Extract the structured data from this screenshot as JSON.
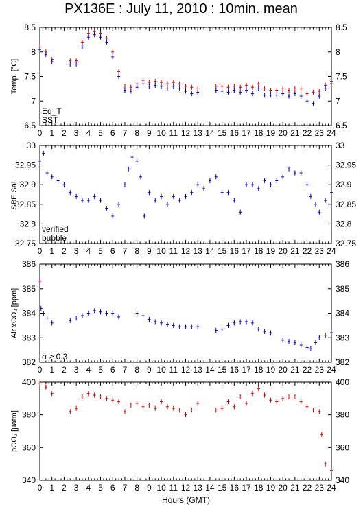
{
  "chart_data": {
    "title": "PX136E : July 11, 2010 : 10min. mean",
    "xlabel": "Hours (GMT)",
    "xlim": [
      0,
      24
    ],
    "xticks": [
      0,
      1,
      2,
      3,
      4,
      5,
      6,
      7,
      8,
      9,
      10,
      11,
      12,
      13,
      14,
      15,
      16,
      17,
      18,
      19,
      20,
      21,
      22,
      23,
      24
    ],
    "panels": [
      {
        "type": "scatter",
        "ylabel": "Temp. [°C]",
        "ylim": [
          6.5,
          8.5
        ],
        "yticks": [
          "6.5",
          "7",
          "7.5",
          "8",
          "8.5"
        ],
        "legend": [
          {
            "label": "Eq_T",
            "color": "#cc0000"
          },
          {
            "label": "SST",
            "color": "#0000cc"
          }
        ],
        "series": [
          {
            "name": "Eq_T",
            "color": "#cc0000",
            "x": [
              0,
              0.5,
              1,
              2.5,
              3,
              3.5,
              4,
              4.5,
              5,
              5.5,
              6,
              6.5,
              7,
              7.5,
              8,
              8.5,
              9,
              9.5,
              10,
              10.5,
              11,
              11.5,
              12,
              12.5,
              13,
              14.5,
              15,
              15.5,
              16,
              16.5,
              17,
              17.5,
              18,
              18.5,
              19,
              19.5,
              20,
              20.5,
              21,
              21.5,
              22,
              22.5,
              23,
              23.5,
              24
            ],
            "values": [
              8.1,
              8.0,
              7.85,
              7.82,
              7.82,
              8.2,
              8.38,
              8.42,
              8.38,
              8.28,
              8.0,
              7.6,
              7.3,
              7.28,
              7.35,
              7.42,
              7.38,
              7.4,
              7.38,
              7.35,
              7.38,
              7.35,
              7.3,
              7.28,
              7.25,
              7.3,
              7.3,
              7.28,
              7.3,
              7.28,
              7.32,
              7.28,
              7.35,
              7.25,
              7.22,
              7.22,
              7.25,
              7.22,
              7.25,
              7.25,
              7.15,
              7.18,
              7.2,
              7.32,
              7.4
            ]
          },
          {
            "name": "SST",
            "color": "#0000cc",
            "x": [
              0,
              0.5,
              1,
              2.5,
              3,
              3.5,
              4,
              4.5,
              5,
              5.5,
              6,
              6.5,
              7,
              7.5,
              8,
              8.5,
              9,
              9.5,
              10,
              10.5,
              11,
              11.5,
              12,
              12.5,
              13,
              14.5,
              15,
              15.5,
              16,
              16.5,
              17,
              17.5,
              18,
              18.5,
              19,
              19.5,
              20,
              20.5,
              21,
              21.5,
              22,
              22.5,
              23,
              23.5,
              24
            ],
            "values": [
              8.05,
              7.95,
              7.8,
              7.75,
              7.75,
              8.1,
              8.3,
              8.35,
              8.3,
              8.2,
              7.9,
              7.5,
              7.22,
              7.2,
              7.28,
              7.35,
              7.3,
              7.32,
              7.3,
              7.25,
              7.3,
              7.25,
              7.2,
              7.15,
              7.18,
              7.22,
              7.2,
              7.18,
              7.22,
              7.18,
              7.22,
              7.15,
              7.25,
              7.12,
              7.12,
              7.12,
              7.15,
              7.1,
              7.15,
              7.1,
              7.0,
              6.95,
              7.1,
              7.25,
              7.35
            ]
          }
        ]
      },
      {
        "type": "scatter",
        "ylabel": "SBE Sal.",
        "ylim": [
          32.75,
          33
        ],
        "yticks": [
          "32.75",
          "32.8",
          "32.85",
          "32.9",
          "32.95",
          "33"
        ],
        "legend": [
          {
            "label": "verified",
            "color": "#0000cc"
          },
          {
            "label": "bubble",
            "color": "#cc00cc"
          }
        ],
        "series": [
          {
            "name": "verified",
            "color": "#0000cc",
            "x": [
              0,
              0.3,
              0.6,
              1,
              1.5,
              2,
              2.5,
              3,
              3.5,
              4,
              4.5,
              5,
              5.5,
              6,
              6.5,
              7,
              7.3,
              7.6,
              8,
              8.3,
              8.6,
              9,
              9.5,
              10,
              10.5,
              11,
              11.5,
              12,
              12.5,
              13,
              13.5,
              14,
              14.5,
              15,
              15.5,
              16,
              16.5,
              17,
              17.5,
              18,
              18.5,
              19,
              19.5,
              20,
              20.5,
              21,
              21.5,
              22,
              22.3,
              22.7,
              23,
              23.5,
              24
            ],
            "values": [
              32.96,
              32.98,
              32.93,
              32.92,
              32.91,
              32.9,
              32.88,
              32.87,
              32.86,
              32.86,
              32.87,
              32.86,
              32.84,
              32.82,
              32.85,
              32.9,
              32.94,
              32.97,
              32.96,
              32.92,
              32.82,
              32.88,
              32.86,
              32.87,
              32.85,
              32.87,
              32.86,
              32.87,
              32.88,
              32.9,
              32.89,
              32.91,
              32.92,
              32.88,
              32.88,
              32.86,
              32.83,
              32.9,
              32.9,
              32.89,
              32.91,
              32.9,
              32.91,
              32.92,
              32.94,
              32.93,
              32.93,
              32.9,
              32.87,
              32.85,
              32.83,
              32.86,
              32.88
            ]
          }
        ]
      },
      {
        "type": "scatter",
        "ylabel": "Air xCO₂ [ppm]",
        "ylim": [
          382,
          386
        ],
        "yticks": [
          "382",
          "383",
          "384",
          "385",
          "386"
        ],
        "legend": [
          {
            "label": "σ ≥ 0.3",
            "color": "#cc00cc"
          }
        ],
        "series": [
          {
            "name": "",
            "color": "#0000cc",
            "x": [
              0.1,
              0.3,
              0.6,
              1,
              2.5,
              3,
              3.5,
              4,
              4.5,
              5,
              5.5,
              6,
              6.5,
              8,
              8.5,
              9,
              9.5,
              10,
              10.5,
              11,
              11.5,
              12,
              12.5,
              13,
              14.5,
              15,
              15.5,
              16,
              16.5,
              17,
              17.5,
              18,
              18.5,
              19,
              20,
              20.5,
              21,
              21.5,
              22,
              22.3,
              22.7,
              23,
              23.5,
              24
            ],
            "values": [
              384.2,
              384.0,
              383.8,
              383.6,
              383.7,
              383.8,
              383.9,
              384.0,
              384.1,
              384.05,
              384.0,
              384.0,
              383.85,
              384.0,
              383.9,
              383.75,
              383.65,
              383.6,
              383.55,
              383.5,
              383.45,
              383.45,
              383.45,
              383.45,
              383.3,
              383.35,
              383.5,
              383.6,
              383.65,
              383.65,
              383.6,
              383.35,
              383.25,
              383.2,
              382.9,
              382.85,
              382.8,
              382.7,
              382.6,
              382.55,
              382.8,
              383.0,
              383.1,
              383.2
            ]
          },
          {
            "name": "",
            "color": "#cc00cc",
            "x": [
              0.02
            ],
            "values": [
              385.3
            ]
          }
        ]
      },
      {
        "type": "scatter",
        "ylabel": "pCO₂ [μatm]",
        "ylim": [
          340,
          400
        ],
        "yticks": [
          "340",
          "360",
          "380",
          "400"
        ],
        "series": [
          {
            "name": "",
            "color": "#cc0000",
            "x": [
              0,
              0.5,
              1,
              2.5,
              3,
              3.5,
              4,
              4.5,
              5,
              5.5,
              6,
              6.5,
              7,
              7.5,
              8,
              8.5,
              9,
              9.5,
              10,
              10.5,
              11,
              11.5,
              12,
              12.5,
              13,
              14.5,
              15,
              15.5,
              16,
              16.5,
              17,
              17.5,
              18,
              18.5,
              19,
              19.5,
              20,
              20.5,
              21,
              21.5,
              22,
              22.5,
              23,
              23.2,
              23.5,
              24
            ],
            "values": [
              399,
              397,
              393,
              382,
              384,
              391,
              393,
              392,
              391,
              390,
              389,
              388,
              382,
              386,
              387,
              385,
              386,
              384,
              388,
              385,
              384,
              383,
              380,
              383,
              387,
              383,
              384,
              388,
              385,
              391,
              387,
              393,
              396,
              392,
              389,
              388,
              390,
              391,
              391,
              388,
              385,
              383,
              382,
              368,
              350,
              346
            ]
          }
        ]
      }
    ]
  }
}
